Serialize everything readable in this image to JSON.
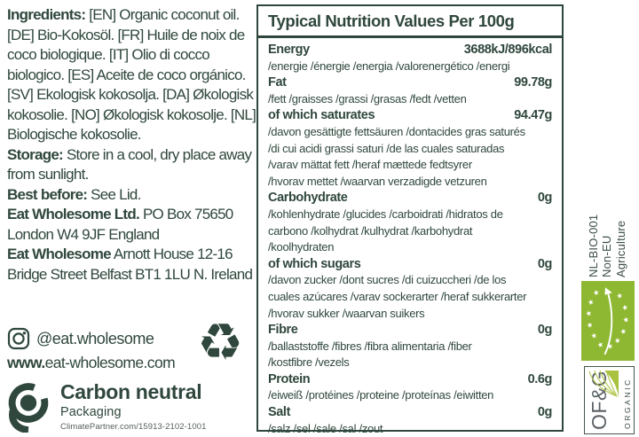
{
  "colors": {
    "text": "#2f473c",
    "eu_green": "#8fb832",
    "ofg_green": "#a9c23f"
  },
  "left": {
    "ingredients_label": "Ingredients:",
    "ingredients_text": " [EN] Organic coconut oil. [DE] Bio-Kokosöl. [FR] Huile de noix de coco biologique. [IT] Olio di cocco biologico. [ES] Aceite de coco orgánico. [SV] Ekologisk kokosolja. [DA] Økologisk kokosolie. [NO] Økologisk kokosolje. [NL] Biologische kokosolie.",
    "storage_label": "Storage:",
    "storage_text": " Store in a cool, dry place away from sunlight.",
    "best_before_label": "Best before:",
    "best_before_text": " See Lid.",
    "company1_label": "Eat Wholesome Ltd.",
    "company1_text": " PO Box 75650 London W4 9JF England",
    "company2_label": "Eat Wholesome",
    "company2_text": " Arnott House 12-16 Bridge Street Belfast BT1 1LU N. Ireland",
    "instagram_handle": "@eat.wholesome",
    "website_prefix": "www.",
    "website_rest": "eat-wholesome.com",
    "recycle_icon": "♻",
    "carbon": {
      "title": "Carbon neutral",
      "subtitle": "Packaging",
      "url": "ClimatePartner.com/15913-2102-1001"
    }
  },
  "nutrition": {
    "title": "Typical Nutrition Values Per 100g",
    "rows": [
      {
        "name": "Energy",
        "value": "3688kJ/896kcal",
        "subs": [
          "/energie /énergie /energia /valorenergético /energi"
        ]
      },
      {
        "name": "Fat",
        "value": "99.78g",
        "subs": [
          "/fett /graisses /grassi /grasas /fedt /vetten"
        ]
      },
      {
        "name": "of which saturates",
        "value": "94.47g",
        "subs": [
          "/davon gesättigte fettsäuren /dontacides gras saturés",
          "/di cui acidi grassi saturi /de las cuales saturadas",
          "/varav mättat fett /heraf mættede fedtsyrer",
          "/hvorav mettet /waarvan verzadigde vetzuren"
        ]
      },
      {
        "name": "Carbohydrate",
        "value": "0g",
        "subs": [
          "/kohlenhydrate /glucides /carboidrati /hidratos de",
          "carbono /kolhydrat /kulhydrat /karbohydrat",
          "/koolhydraten"
        ]
      },
      {
        "name": "of which sugars",
        "value": "0g",
        "subs": [
          "/davon zucker /dont sucres /di cuizuccheri /de los",
          "cuales azúcares /varav sockerarter /heraf sukkerarter",
          "/hvorav sukker /waarvan suikers"
        ]
      },
      {
        "name": "Fibre",
        "value": "0g",
        "subs": [
          "/ballaststoffe /fibres /fibra alimentaria /fiber",
          "/kostfibre /vezels"
        ]
      },
      {
        "name": "Protein",
        "value": "0.6g",
        "subs": [
          "/eiweiß /protéines /proteine /proteínas /eiwitten"
        ]
      },
      {
        "name": "Salt",
        "value": "0g",
        "subs": [
          "/salz /sel /sale /sal /zout"
        ]
      }
    ]
  },
  "right": {
    "cert_line1": "NL-BIO-001",
    "cert_line2": "Non-EU",
    "cert_line3": "Agriculture",
    "ofg_title": "OF&G",
    "ofg_subtitle": "ORGANIC"
  }
}
